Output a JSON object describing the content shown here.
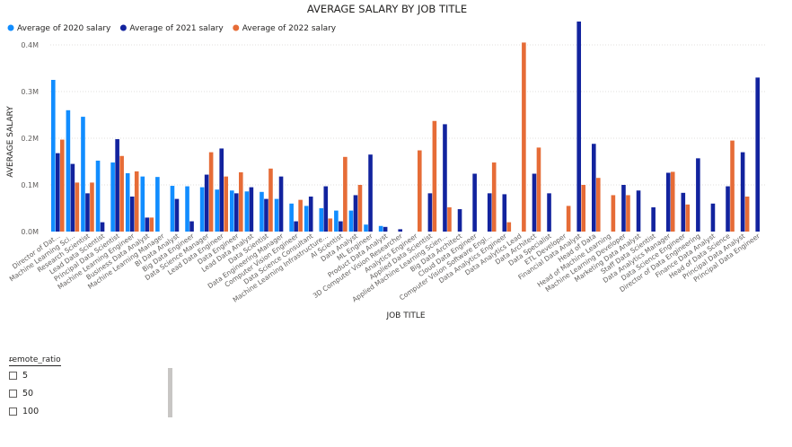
{
  "chart_data": {
    "type": "bar",
    "title": "AVERAGE SALARY BY JOB TITLE",
    "xlabel": "JOB TITLE",
    "ylabel": "AVERAGE SALARY",
    "ylim": [
      0,
      450000
    ],
    "yticks": [
      0,
      100000,
      200000,
      300000,
      400000
    ],
    "ytick_labels": [
      "0.0M",
      "0.1M",
      "0.2M",
      "0.3M",
      "0.4M"
    ],
    "grid": true,
    "legend_position": "top-left",
    "categories": [
      "Director of Dat...",
      "Machine Learning Sci...",
      "Research Scientist",
      "Lead Data Scientist",
      "Principal Data Scientist",
      "Machine Learning Engineer",
      "Business Data Analyst",
      "Machine Learning Manager",
      "BI Data Analyst",
      "Big Data Engineer",
      "Data Science Manager",
      "Lead Data Engineer",
      "Data Engineer",
      "Lead Data Analyst",
      "Data Scientist",
      "Data Engineering Manager",
      "Computer Vision Engineer",
      "Data Science Consultant",
      "Machine Learning Infrastructure...",
      "AI Scientist",
      "Data Analyst",
      "ML Engineer",
      "Product Data Analyst",
      "3D Computer Vision Researcher",
      "Analytics Engineer",
      "Applied Data Scientist",
      "Applied Machine Learning Scien...",
      "Big Data Architect",
      "Cloud Data Engineer",
      "Computer Vision Software Engi...",
      "Data Analytics Engineer",
      "Data Analytics Lead",
      "Data Architect",
      "Data Specialist",
      "ETL Developer",
      "Financial Data Analyst",
      "Head of Data",
      "Head of Machine Learning",
      "Machine Learning Developer",
      "Marketing Data Analyst",
      "Staff Data Scientist",
      "Data Analytics Manager",
      "Data Science Engineer",
      "Director of Data Engineering",
      "Finance Data Analyst",
      "Head of Data Science",
      "Principal Data Analyst",
      "Principal Data Engineer"
    ],
    "series": [
      {
        "name": "Average of 2020 salary",
        "color": "#118DFF",
        "values": [
          325000,
          260000,
          246000,
          152000,
          148000,
          125000,
          118000,
          117000,
          98000,
          97000,
          95000,
          90000,
          88000,
          86000,
          85000,
          70000,
          60000,
          55000,
          50000,
          45000,
          45000,
          15000,
          12000,
          null,
          null,
          null,
          null,
          null,
          null,
          null,
          null,
          null,
          null,
          null,
          null,
          null,
          null,
          null,
          null,
          null,
          null,
          null,
          null,
          null,
          null,
          null,
          null,
          null
        ]
      },
      {
        "name": "Average of 2021 salary",
        "color": "#12239E",
        "values": [
          168000,
          145000,
          82000,
          20000,
          198000,
          75000,
          30000,
          null,
          70000,
          22000,
          122000,
          178000,
          82000,
          95000,
          70000,
          118000,
          22000,
          75000,
          97000,
          22000,
          78000,
          165000,
          10000,
          5000,
          null,
          82000,
          230000,
          48000,
          124000,
          82000,
          80000,
          null,
          124000,
          82000,
          null,
          450000,
          188000,
          null,
          100000,
          88000,
          52000,
          126000,
          83000,
          157000,
          60000,
          97000,
          170000,
          330000
        ]
      },
      {
        "name": "Average of 2022 salary",
        "color": "#E66C37",
        "values": [
          197000,
          105000,
          105000,
          null,
          162000,
          129000,
          30000,
          null,
          null,
          null,
          170000,
          118000,
          127000,
          null,
          135000,
          null,
          68000,
          null,
          28000,
          160000,
          100000,
          null,
          null,
          null,
          174000,
          237000,
          52000,
          null,
          null,
          148000,
          20000,
          405000,
          180000,
          null,
          55000,
          100000,
          115000,
          78000,
          78000,
          null,
          null,
          128000,
          58000,
          null,
          null,
          195000,
          75000,
          null
        ]
      }
    ]
  },
  "slicer": {
    "title": "remote_ratio",
    "options": [
      "5",
      "50",
      "100"
    ]
  }
}
